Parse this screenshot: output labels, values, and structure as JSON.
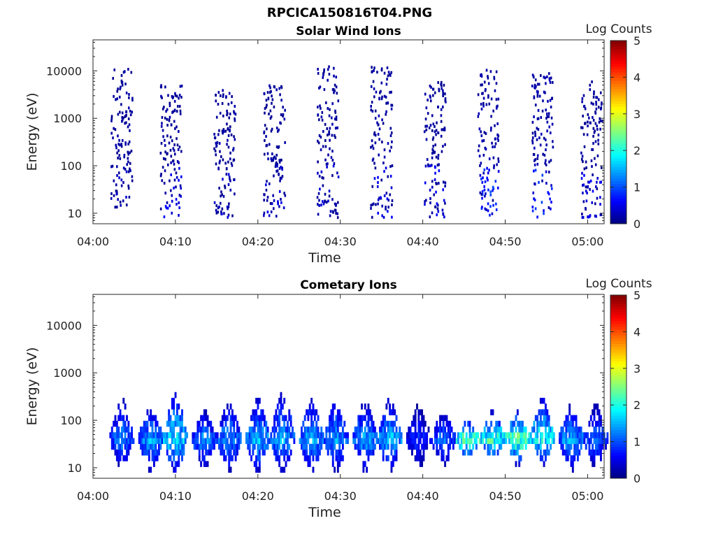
{
  "figure_title": "RPCICA150816T04.PNG",
  "chart_data": [
    {
      "type": "heatmap",
      "title": "Solar Wind Ions",
      "xlabel": "Time",
      "ylabel": "Energy (eV)",
      "yscale": "log",
      "ylim": [
        6,
        45000
      ],
      "xlim": [
        "04:00",
        "05:02"
      ],
      "xticks": [
        "04:00",
        "04:10",
        "04:20",
        "04:30",
        "04:40",
        "04:50",
        "05:00"
      ],
      "yticks": [
        "10",
        "100",
        "1000",
        "10000"
      ],
      "colorbar": {
        "label": "Log Counts",
        "min": 0,
        "max": 5,
        "ticks": [
          "0",
          "1",
          "2",
          "3",
          "4",
          "5"
        ],
        "colormap": "jet"
      },
      "colormap_colors": [
        "#00007f",
        "#0000ff",
        "#007fff",
        "#00ffff",
        "#7fff7f",
        "#ffff00",
        "#ff7f00",
        "#ff0000",
        "#7f0000"
      ],
      "sweeps": [
        {
          "center": "04:03.5",
          "emin": 10,
          "emax": 11000,
          "level": 0.15,
          "lowcore": 0.2
        },
        {
          "center": "04:09.5",
          "emin": 8,
          "emax": 6000,
          "level": 0.15,
          "lowcore": 0.5
        },
        {
          "center": "04:16",
          "emin": 8,
          "emax": 5000,
          "level": 0.15,
          "lowcore": 0.3
        },
        {
          "center": "04:22",
          "emin": 8,
          "emax": 5000,
          "level": 0.15,
          "lowcore": 0.3
        },
        {
          "center": "04:28.5",
          "emin": 8,
          "emax": 13000,
          "level": 0.15,
          "lowcore": 0.3
        },
        {
          "center": "04:35",
          "emin": 8,
          "emax": 13000,
          "level": 0.15,
          "lowcore": 0.4
        },
        {
          "center": "04:41.5",
          "emin": 8,
          "emax": 6000,
          "level": 0.15,
          "lowcore": 0.5
        },
        {
          "center": "04:48",
          "emin": 8,
          "emax": 12000,
          "level": 0.2,
          "lowcore": 0.9
        },
        {
          "center": "04:54.5",
          "emin": 8,
          "emax": 9000,
          "level": 0.2,
          "lowcore": 0.8
        },
        {
          "center": "05:00.5",
          "emin": 8,
          "emax": 6000,
          "level": 0.15,
          "lowcore": 0.4
        }
      ]
    },
    {
      "type": "heatmap",
      "title": "Cometary Ions",
      "xlabel": "Time",
      "ylabel": "Energy (eV)",
      "yscale": "log",
      "ylim": [
        6,
        45000
      ],
      "xlim": [
        "04:00",
        "05:02"
      ],
      "xticks": [
        "04:00",
        "04:10",
        "04:20",
        "04:30",
        "04:40",
        "04:50",
        "05:00"
      ],
      "yticks": [
        "10",
        "100",
        "1000",
        "10000"
      ],
      "colorbar": {
        "label": "Log Counts",
        "min": 0,
        "max": 5,
        "ticks": [
          "0",
          "1",
          "2",
          "3",
          "4",
          "5"
        ],
        "colormap": "jet"
      },
      "sweeps": [
        {
          "center": "04:03.5",
          "emin": 10,
          "emax": 300,
          "peak_energy": 40,
          "peak_level": 1.4
        },
        {
          "center": "04:07",
          "emin": 8,
          "emax": 200,
          "peak_energy": 40,
          "peak_level": 1.6
        },
        {
          "center": "04:10",
          "emin": 8,
          "emax": 400,
          "peak_energy": 40,
          "peak_level": 2.0
        },
        {
          "center": "04:13.5",
          "emin": 10,
          "emax": 150,
          "peak_energy": 40,
          "peak_level": 1.5
        },
        {
          "center": "04:16.5",
          "emin": 8,
          "emax": 250,
          "peak_energy": 40,
          "peak_level": 1.5
        },
        {
          "center": "04:20",
          "emin": 8,
          "emax": 300,
          "peak_energy": 40,
          "peak_level": 1.7
        },
        {
          "center": "04:23",
          "emin": 8,
          "emax": 450,
          "peak_energy": 40,
          "peak_level": 1.6
        },
        {
          "center": "04:26.5",
          "emin": 8,
          "emax": 300,
          "peak_energy": 40,
          "peak_level": 1.6
        },
        {
          "center": "04:29.5",
          "emin": 8,
          "emax": 300,
          "peak_energy": 40,
          "peak_level": 1.5
        },
        {
          "center": "04:33",
          "emin": 8,
          "emax": 250,
          "peak_energy": 40,
          "peak_level": 1.6
        },
        {
          "center": "04:36",
          "emin": 8,
          "emax": 300,
          "peak_energy": 40,
          "peak_level": 1.7
        },
        {
          "center": "04:39.5",
          "emin": 10,
          "emax": 200,
          "peak_energy": 40,
          "peak_level": 1.0
        },
        {
          "center": "04:42.5",
          "emin": 10,
          "emax": 150,
          "peak_energy": 40,
          "peak_level": 1.3
        },
        {
          "center": "04:45.5",
          "emin": 15,
          "emax": 100,
          "peak_energy": 40,
          "peak_level": 2.6
        },
        {
          "center": "04:48.5",
          "emin": 15,
          "emax": 150,
          "peak_energy": 40,
          "peak_level": 2.4
        },
        {
          "center": "04:51.5",
          "emin": 12,
          "emax": 150,
          "peak_energy": 40,
          "peak_level": 2.6
        },
        {
          "center": "04:54.5",
          "emin": 12,
          "emax": 300,
          "peak_energy": 40,
          "peak_level": 2.2
        },
        {
          "center": "04:58",
          "emin": 8,
          "emax": 200,
          "peak_energy": 40,
          "peak_level": 1.6
        },
        {
          "center": "05:01",
          "emin": 10,
          "emax": 200,
          "peak_energy": 40,
          "peak_level": 1.3
        }
      ]
    }
  ]
}
